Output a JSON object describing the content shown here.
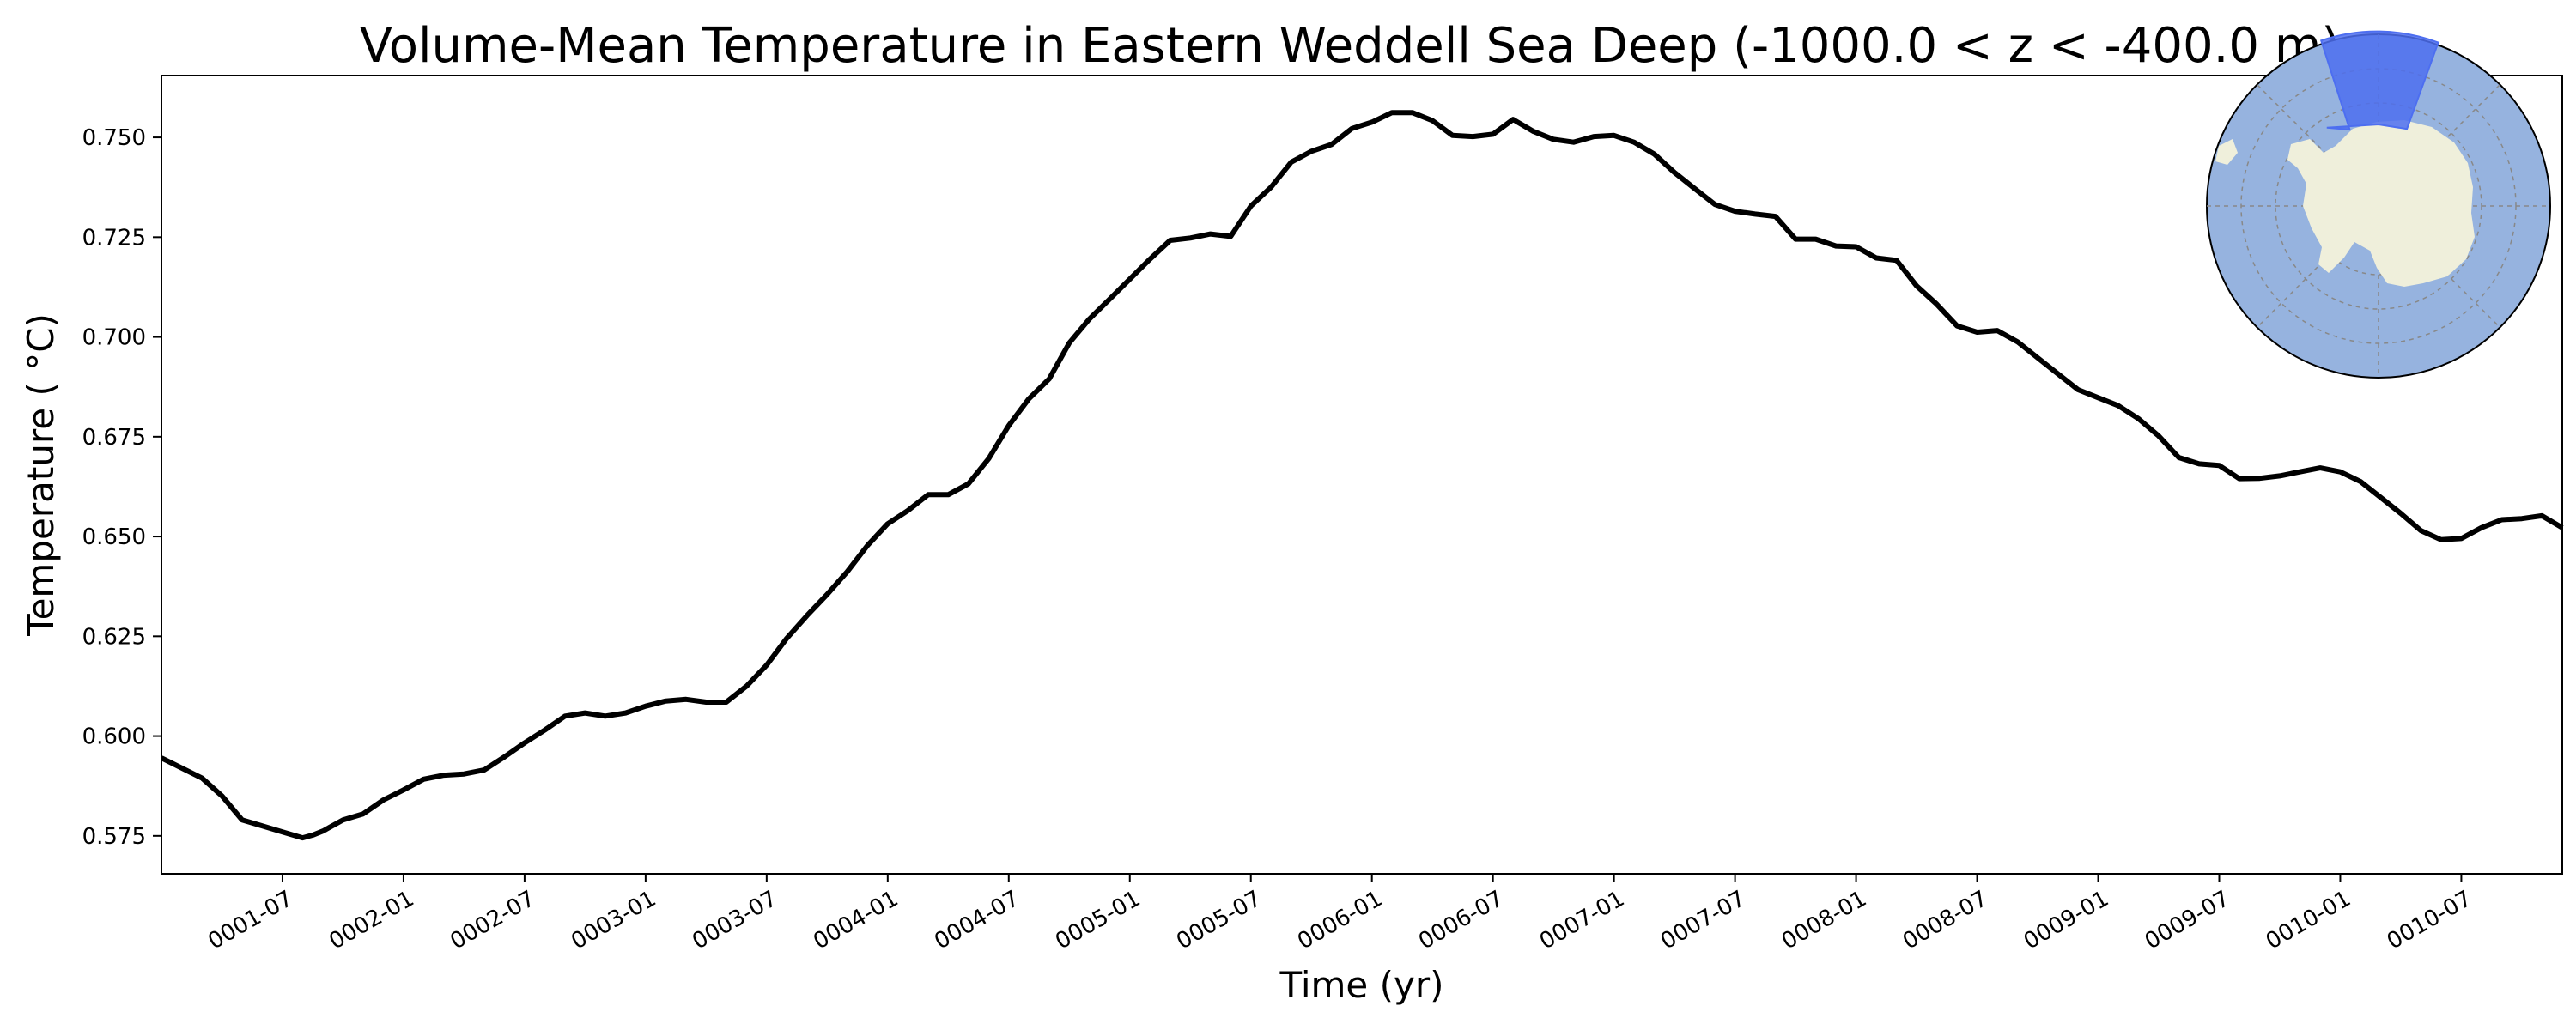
{
  "chart_data": {
    "type": "line",
    "title": "Volume-Mean Temperature in Eastern Weddell Sea Deep (-1000.0 < z < -400.0 m)",
    "xlabel": "Time (yr)",
    "ylabel": "Temperature ($^\\circ$C)",
    "ylabel_display": "Temperature ( °C)",
    "x_ticks": [
      "0001-07",
      "0002-01",
      "0002-07",
      "0003-01",
      "0003-07",
      "0004-01",
      "0004-07",
      "0005-01",
      "0005-07",
      "0006-01",
      "0006-07",
      "0007-01",
      "0007-07",
      "0008-01",
      "0008-07",
      "0009-01",
      "0009-07",
      "0010-01",
      "0010-07"
    ],
    "y_ticks": [
      "0.575",
      "0.600",
      "0.625",
      "0.650",
      "0.675",
      "0.700",
      "0.725",
      "0.750"
    ],
    "xlim": [
      0.0,
      9.917
    ],
    "ylim": [
      0.5655,
      0.7655
    ],
    "grid": false,
    "line_color": "#000000",
    "series": [
      {
        "x": [
          0.0,
          0.167,
          0.25,
          0.333,
          0.417,
          0.5,
          0.583,
          0.625,
          0.667,
          0.75,
          0.833,
          0.917,
          1.0,
          1.083,
          1.167,
          1.25,
          1.333,
          1.417,
          1.5,
          1.583,
          1.667,
          1.75,
          1.833,
          1.917,
          2.0,
          2.083,
          2.167,
          2.25,
          2.333,
          2.417,
          2.5,
          2.583,
          2.667,
          2.75,
          2.833,
          2.917,
          3.0,
          3.083,
          3.167,
          3.25,
          3.333,
          3.417,
          3.5,
          3.583,
          3.667,
          3.75,
          3.833,
          3.917,
          4.0,
          4.083,
          4.167,
          4.25,
          4.333,
          4.417,
          4.5,
          4.583,
          4.667,
          4.75,
          4.833,
          4.917,
          5.0,
          5.083,
          5.167,
          5.25,
          5.333,
          5.417,
          5.5,
          5.583,
          5.667,
          5.75,
          5.833,
          5.917,
          6.0,
          6.083,
          6.167,
          6.25,
          6.333,
          6.417,
          6.5,
          6.583,
          6.667,
          6.75,
          6.833,
          6.917,
          7.0,
          7.083,
          7.167,
          7.25,
          7.333,
          7.417,
          7.5,
          7.583,
          7.667,
          7.75,
          7.833,
          7.917,
          8.0,
          8.083,
          8.167,
          8.25,
          8.333,
          8.417,
          8.5,
          8.583,
          8.667,
          8.75,
          8.833,
          8.917,
          9.0,
          9.083,
          9.167,
          9.25,
          9.333,
          9.417,
          9.5,
          9.583,
          9.667,
          9.75,
          9.833,
          9.917
        ],
        "values": [
          0.5945,
          0.5895,
          0.585,
          0.579,
          0.5775,
          0.576,
          0.5745,
          0.5752,
          0.5762,
          0.579,
          0.5805,
          0.584,
          0.5865,
          0.5892,
          0.5902,
          0.5905,
          0.5915,
          0.5948,
          0.5983,
          0.6015,
          0.605,
          0.6058,
          0.605,
          0.6058,
          0.6075,
          0.6088,
          0.6092,
          0.6085,
          0.6085,
          0.6125,
          0.6178,
          0.6245,
          0.6302,
          0.6355,
          0.6412,
          0.6478,
          0.6532,
          0.6565,
          0.6605,
          0.6605,
          0.6632,
          0.6695,
          0.6778,
          0.6845,
          0.6895,
          0.6985,
          0.7045,
          0.7095,
          0.7145,
          0.7195,
          0.7242,
          0.7248,
          0.7258,
          0.7252,
          0.7328,
          0.7375,
          0.7438,
          0.7465,
          0.7482,
          0.7522,
          0.7538,
          0.7562,
          0.7562,
          0.7542,
          0.7505,
          0.7502,
          0.7508,
          0.7545,
          0.7515,
          0.7495,
          0.7488,
          0.7502,
          0.7505,
          0.7488,
          0.7458,
          0.7412,
          0.7372,
          0.7332,
          0.7315,
          0.7308,
          0.7302,
          0.7245,
          0.7245,
          0.7228,
          0.7226,
          0.7198,
          0.7192,
          0.7128,
          0.7082,
          0.7028,
          0.7012,
          0.7016,
          0.6988,
          0.6948,
          0.6908,
          0.6868,
          0.6848,
          0.6828,
          0.6795,
          0.6752,
          0.6698,
          0.6682,
          0.6678,
          0.6645,
          0.6646,
          0.6652,
          0.6662,
          0.6672,
          0.6662,
          0.6638,
          0.6598,
          0.6558,
          0.6515,
          0.6492,
          0.6495,
          0.6522,
          0.6542,
          0.6545,
          0.6552,
          0.6522
        ]
      }
    ]
  },
  "inset_map": {
    "ocean_color": "#96b3df",
    "land_color": "#efefdb",
    "region_color": "#4d6ef0"
  }
}
